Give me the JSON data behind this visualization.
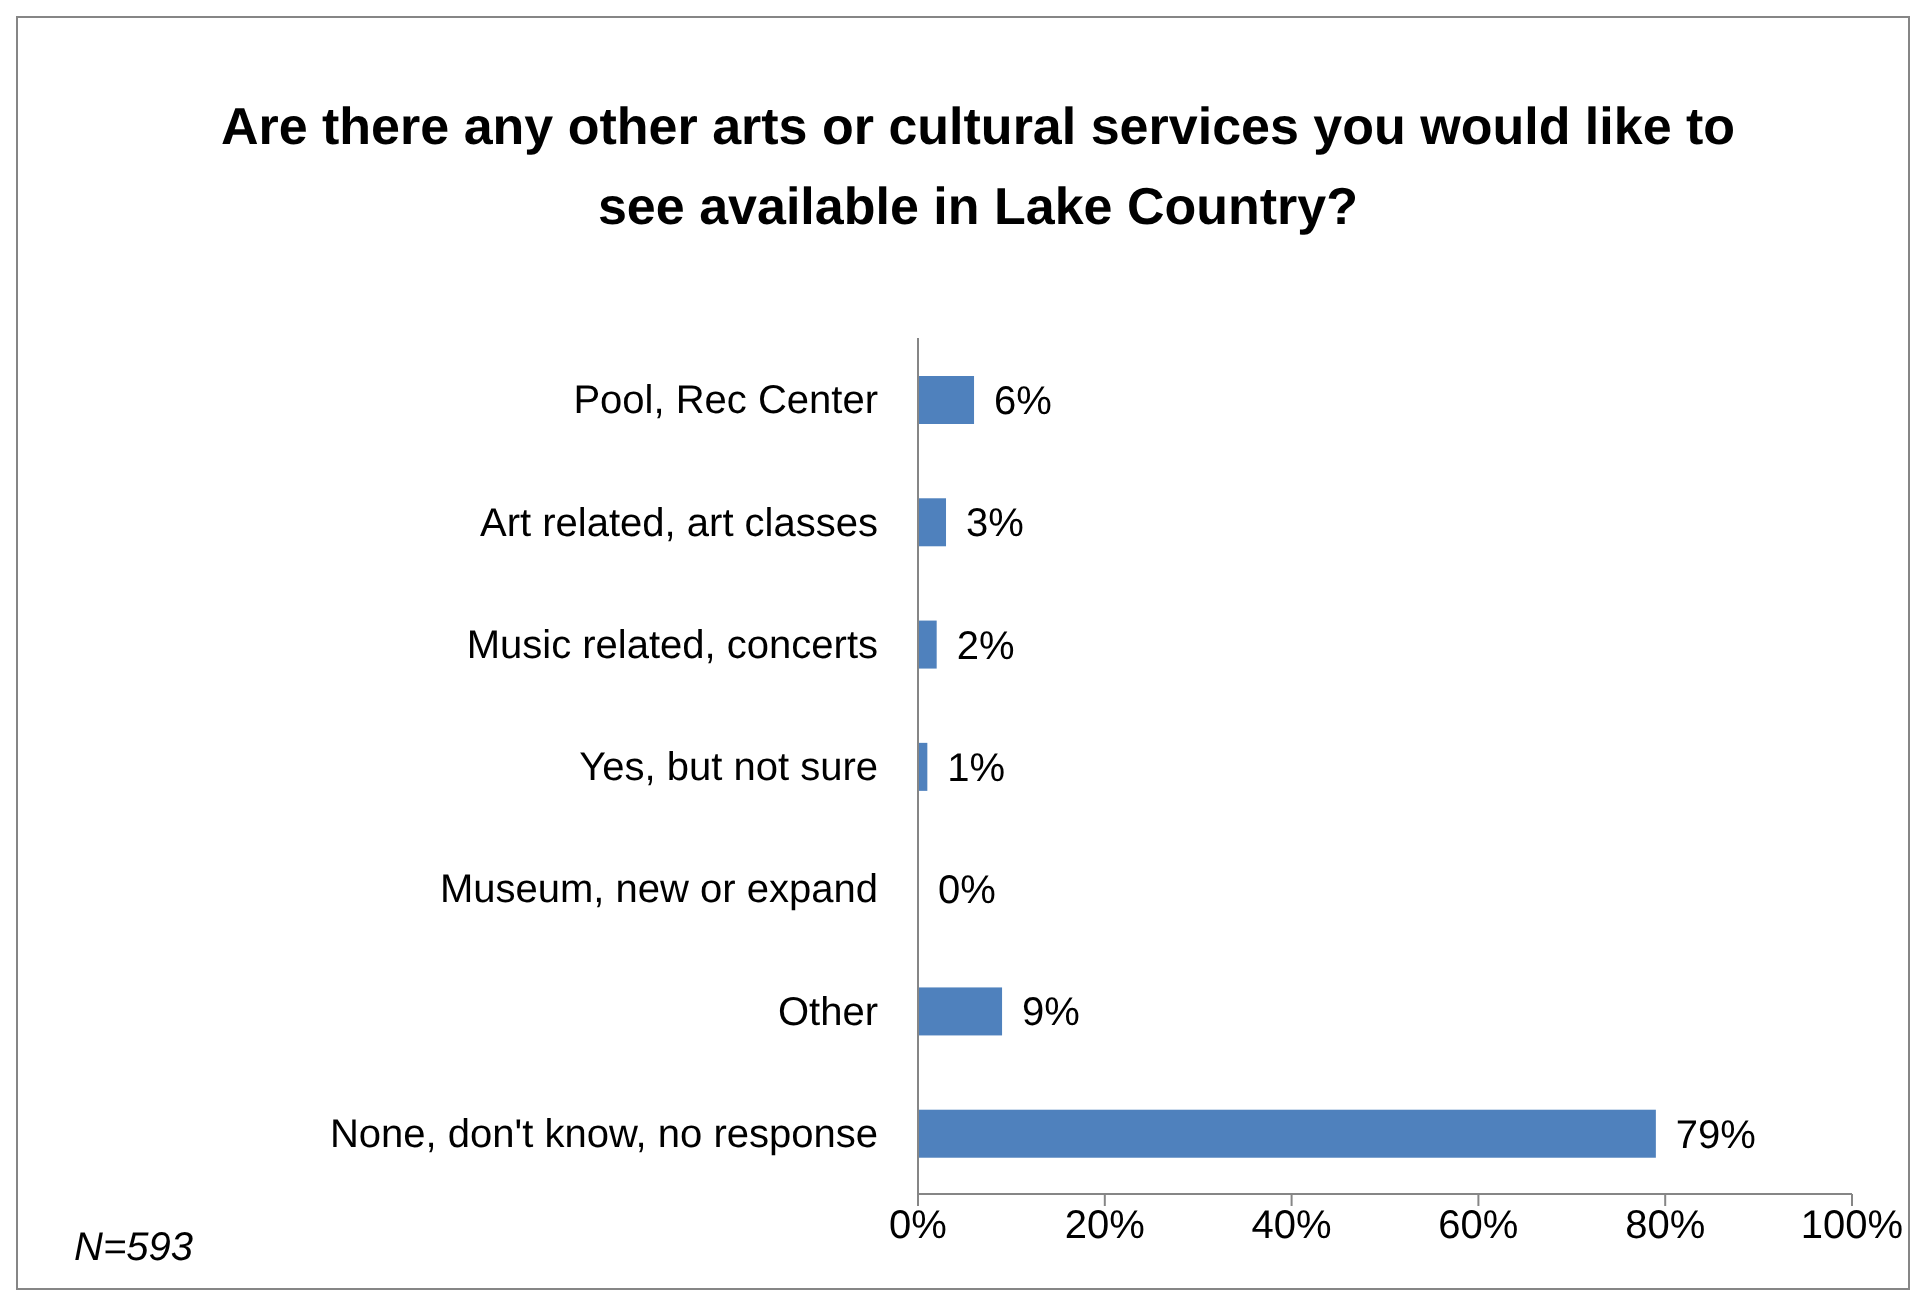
{
  "chart_data": {
    "type": "bar",
    "orientation": "horizontal",
    "title": "Are there any other arts or cultural services you would like to see available in Lake Country?",
    "categories": [
      "Pool, Rec Center",
      "Art related, art classes",
      "Music related, concerts",
      "Yes, but not sure",
      "Museum, new or expand",
      "Other",
      "None, don't know, no response"
    ],
    "values": [
      6,
      3,
      2,
      1,
      0,
      9,
      79
    ],
    "value_labels": [
      "6%",
      "3%",
      "2%",
      "1%",
      "0%",
      "9%",
      "79%"
    ],
    "color": "#4f81bd",
    "xlim": [
      0,
      100
    ],
    "xticks": [
      {
        "value": 0,
        "label": "0%"
      },
      {
        "value": 20,
        "label": "20%"
      },
      {
        "value": 40,
        "label": "40%"
      },
      {
        "value": 60,
        "label": "60%"
      },
      {
        "value": 80,
        "label": "80%"
      },
      {
        "value": 100,
        "label": "100%"
      }
    ],
    "grid": false,
    "legend": false,
    "annotations": [
      "N=593"
    ]
  }
}
